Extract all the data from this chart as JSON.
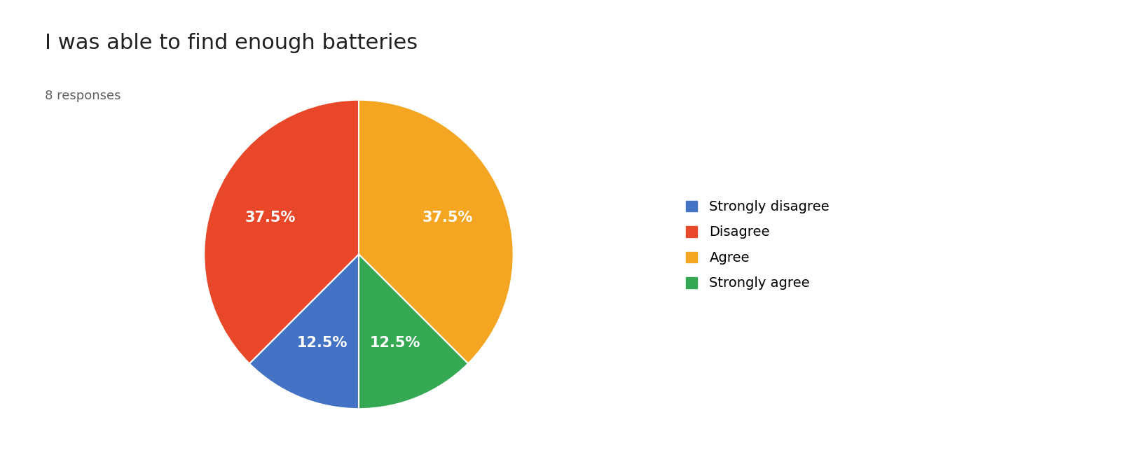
{
  "title": "I was able to find enough batteries",
  "subtitle": "8 responses",
  "labels": [
    "Strongly disagree",
    "Disagree",
    "Agree",
    "Strongly agree"
  ],
  "legend_order": [
    "Strongly disagree",
    "Disagree",
    "Agree",
    "Strongly agree"
  ],
  "pie_order_labels": [
    "Agree",
    "Strongly agree",
    "Strongly disagree",
    "Disagree"
  ],
  "pie_values": [
    37.5,
    12.5,
    12.5,
    37.5
  ],
  "pie_colors": [
    "#f4a622",
    "#34a853",
    "#4472c4",
    "#e8472a"
  ],
  "legend_colors": [
    "#4472c4",
    "#e8472a",
    "#f4a622",
    "#34a853"
  ],
  "pct_labels": [
    "37.5%",
    "12.5%",
    "12.5%",
    "37.5%"
  ],
  "title_fontsize": 22,
  "subtitle_fontsize": 13,
  "legend_fontsize": 14,
  "pct_fontsize": 15,
  "background_color": "#ffffff",
  "startangle": 90
}
